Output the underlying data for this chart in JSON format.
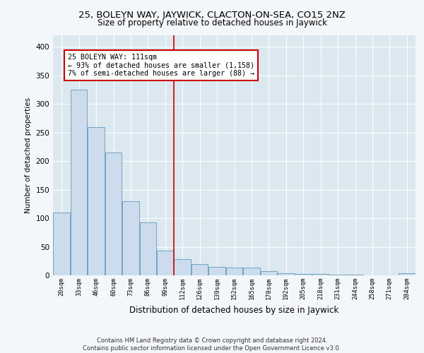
{
  "title": "25, BOLEYN WAY, JAYWICK, CLACTON-ON-SEA, CO15 2NZ",
  "subtitle": "Size of property relative to detached houses in Jaywick",
  "xlabel": "Distribution of detached houses by size in Jaywick",
  "ylabel": "Number of detached properties",
  "bar_color": "#ccdcec",
  "bar_edge_color": "#6699bb",
  "bg_color": "#dce8f0",
  "grid_color": "#ffffff",
  "annotation_text": "25 BOLEYN WAY: 111sqm\n← 93% of detached houses are smaller (1,158)\n7% of semi-detached houses are larger (88) →",
  "annotation_box_color": "#ffffff",
  "annotation_box_edge": "#cc0000",
  "vline_color": "#cc0000",
  "footer": "Contains HM Land Registry data © Crown copyright and database right 2024.\nContains public sector information licensed under the Open Government Licence v3.0.",
  "categories": [
    "20sqm",
    "33sqm",
    "46sqm",
    "60sqm",
    "73sqm",
    "86sqm",
    "99sqm",
    "112sqm",
    "126sqm",
    "139sqm",
    "152sqm",
    "165sqm",
    "178sqm",
    "192sqm",
    "205sqm",
    "218sqm",
    "231sqm",
    "244sqm",
    "258sqm",
    "271sqm",
    "284sqm"
  ],
  "values": [
    110,
    325,
    260,
    215,
    130,
    93,
    43,
    28,
    20,
    15,
    14,
    14,
    8,
    4,
    2,
    2,
    1,
    1,
    0,
    0,
    4
  ],
  "ylim": [
    0,
    420
  ],
  "yticks": [
    0,
    50,
    100,
    150,
    200,
    250,
    300,
    350,
    400
  ],
  "fig_bg": "#f4f7fa"
}
